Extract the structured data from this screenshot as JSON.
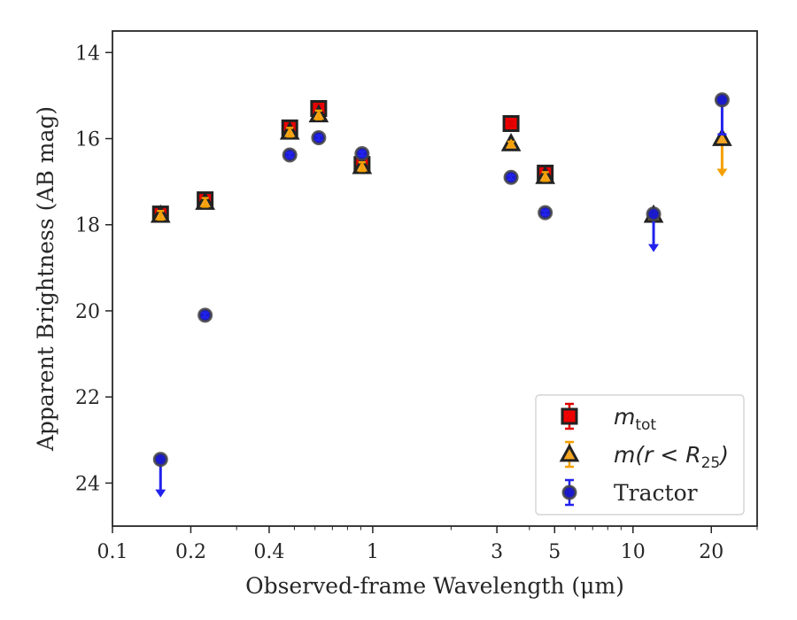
{
  "chart_data": {
    "type": "scatter",
    "xlabel": "Observed-frame Wavelength (μm)",
    "ylabel": "Apparent Brightness (AB mag)",
    "xscale": "log",
    "xlim": [
      0.1,
      30
    ],
    "ylim": [
      25,
      13.5
    ],
    "y_inverted": true,
    "x_ticks": [
      0.1,
      0.2,
      0.4,
      1,
      3,
      5,
      10,
      20
    ],
    "x_tick_labels": [
      "0.1",
      "0.2",
      "0.4",
      "1",
      "3",
      "5",
      "10",
      "20"
    ],
    "y_ticks": [
      14,
      16,
      18,
      20,
      22,
      24
    ],
    "y_tick_labels": [
      "14",
      "16",
      "18",
      "20",
      "22",
      "24"
    ],
    "grid": false,
    "legend_position": "bottom-right",
    "series": [
      {
        "name": "m_tot",
        "legend_main": "m",
        "legend_sub": "tot",
        "marker": "square",
        "color": "#ee0000",
        "edge": "#222222",
        "err_color": "#dd0000",
        "points": [
          {
            "x": 0.153,
            "y": 17.75,
            "err": 0.1
          },
          {
            "x": 0.227,
            "y": 17.42,
            "err": 0.1
          },
          {
            "x": 0.48,
            "y": 15.75,
            "err": 0.1
          },
          {
            "x": 0.62,
            "y": 15.3,
            "err": 0.1
          },
          {
            "x": 0.91,
            "y": 16.6,
            "err": 0.1
          },
          {
            "x": 3.4,
            "y": 15.65,
            "err": 0.05
          },
          {
            "x": 4.6,
            "y": 16.8,
            "err": 0.1
          }
        ]
      },
      {
        "name": "m(r < R25)",
        "legend_main": "m(r < R",
        "legend_sub": "25",
        "legend_end": ")",
        "marker": "triangle",
        "color": "#f5a623",
        "edge": "#222222",
        "err_color": "#f5a000",
        "points": [
          {
            "x": 0.153,
            "y": 17.78,
            "err": 0.1
          },
          {
            "x": 0.227,
            "y": 17.48,
            "err": 0.1
          },
          {
            "x": 0.48,
            "y": 15.85,
            "err": 0.1
          },
          {
            "x": 0.62,
            "y": 15.45,
            "err": 0.1
          },
          {
            "x": 0.91,
            "y": 16.65,
            "err": 0.1
          },
          {
            "x": 3.4,
            "y": 16.12,
            "err": 0.05
          },
          {
            "x": 4.6,
            "y": 16.88,
            "err": 0.1
          },
          {
            "x": 12.0,
            "y": 17.78,
            "err": 0.05
          },
          {
            "x": 22.0,
            "y": 16.0,
            "upper_limit": true
          }
        ]
      },
      {
        "name": "Tractor",
        "legend_main": "Tractor",
        "marker": "circle",
        "color": "#1a1acc",
        "edge": "#444444",
        "err_color": "#2222ee",
        "points": [
          {
            "x": 0.153,
            "y": 23.45,
            "upper_limit": true
          },
          {
            "x": 0.227,
            "y": 20.1,
            "err": 0.05
          },
          {
            "x": 0.48,
            "y": 16.38,
            "err": 0.05
          },
          {
            "x": 0.62,
            "y": 15.98,
            "err": 0.05
          },
          {
            "x": 0.91,
            "y": 16.35,
            "err": 0.05
          },
          {
            "x": 3.4,
            "y": 16.9,
            "err": 0.05
          },
          {
            "x": 4.6,
            "y": 17.72,
            "err": 0.05
          },
          {
            "x": 12.0,
            "y": 17.75,
            "upper_limit": true
          },
          {
            "x": 22.0,
            "y": 15.1,
            "err_low": 0.8
          }
        ]
      }
    ]
  }
}
